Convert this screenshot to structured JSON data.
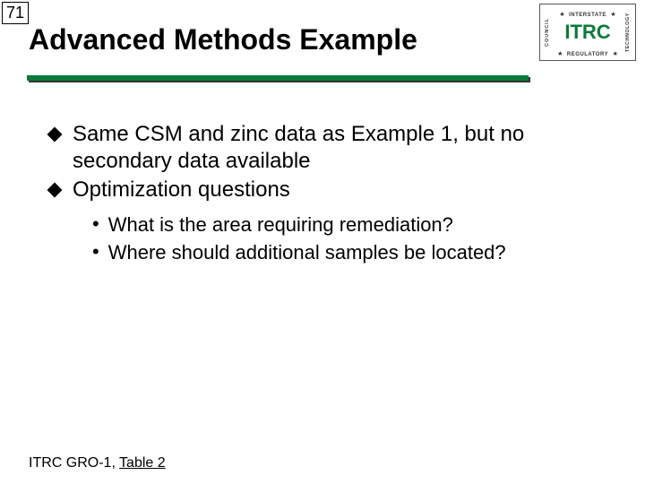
{
  "slide_number": "71",
  "logo": {
    "left_vertical": "COUNCIL",
    "right_vertical": "TECHNOLOGY",
    "top_word": "INTERSTATE",
    "center": "ITRC",
    "bottom_word": "REGULATORY",
    "star": "★",
    "brand_color": "#0a7a3a"
  },
  "title": "Advanced Methods Example",
  "underline_color": "#0a7a3a",
  "bullets": [
    "Same CSM and zinc data as Example 1, but no secondary data available",
    "Optimization questions"
  ],
  "sub_bullets": [
    "What is the area requiring remediation?",
    "Where should additional samples be located?"
  ],
  "footer_prefix": "ITRC GRO-1, ",
  "footer_link": "Table 2"
}
